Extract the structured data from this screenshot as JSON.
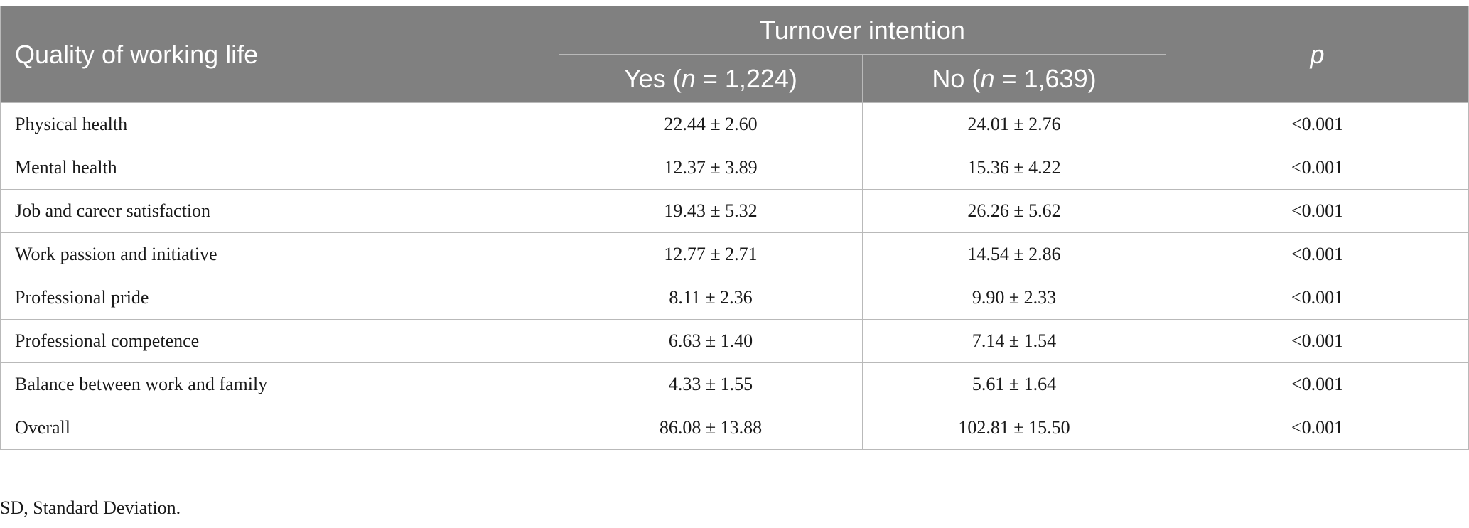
{
  "header": {
    "row_label": "Quality of working life",
    "group_label": "Turnover intention",
    "yes_col": {
      "prefix": "Yes (",
      "n_symbol": "n",
      "suffix": " = 1,224)"
    },
    "no_col": {
      "prefix": "No (",
      "n_symbol": "n",
      "suffix": " = 1,639)"
    },
    "p_label": "p"
  },
  "rows": [
    {
      "label": "Physical health",
      "yes": "22.44 ± 2.60",
      "no": "24.01 ± 2.76",
      "p": "<0.001"
    },
    {
      "label": "Mental health",
      "yes": "12.37 ± 3.89",
      "no": "15.36 ± 4.22",
      "p": "<0.001"
    },
    {
      "label": "Job and career satisfaction",
      "yes": "19.43 ± 5.32",
      "no": "26.26 ± 5.62",
      "p": "<0.001"
    },
    {
      "label": "Work passion and initiative",
      "yes": "12.77 ± 2.71",
      "no": "14.54 ± 2.86",
      "p": "<0.001"
    },
    {
      "label": "Professional pride",
      "yes": "8.11 ± 2.36",
      "no": "9.90 ± 2.33",
      "p": "<0.001"
    },
    {
      "label": "Professional competence",
      "yes": "6.63 ± 1.40",
      "no": "7.14 ± 1.54",
      "p": "<0.001"
    },
    {
      "label": "Balance between work and family",
      "yes": "4.33 ± 1.55",
      "no": "5.61 ± 1.64",
      "p": "<0.001"
    },
    {
      "label": "Overall",
      "yes": "86.08 ± 13.88",
      "no": "102.81 ± 15.50",
      "p": "<0.001"
    }
  ],
  "footnote": "SD, Standard Deviation.",
  "colors": {
    "header_bg": "#808080",
    "header_text": "#ffffff",
    "grid_line": "#b9b9b9"
  }
}
